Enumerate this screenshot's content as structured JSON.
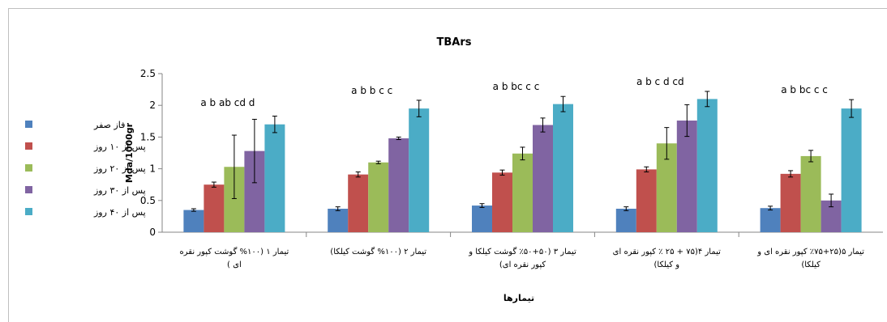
{
  "chart_data": {
    "type": "bar",
    "title": "TBArs",
    "ylabel": "Mda/1000gr",
    "xlabel": "تیمارها",
    "ylim": [
      0,
      2.5
    ],
    "yticks": [
      "0",
      "0.5",
      "1",
      "1.5",
      "2",
      "2.5"
    ],
    "grid": false,
    "legend_position": "left",
    "categories": [
      {
        "lines": [
          "تیمار ۱ (۱۰۰% گوشت کپور نقره",
          "ای )"
        ]
      },
      {
        "lines": [
          "تیمار ۲ (۱۰۰% گوشت کیلکا)"
        ]
      },
      {
        "lines": [
          "تیمار ۳ (۵۰+۵۰٪ گوشت کیلکا و",
          "کپور نقره ای)"
        ]
      },
      {
        "lines": [
          "تیمار ۴(۷۵ + ۲۵ ٪ کپور نقره ای",
          "و کیلکا)"
        ]
      },
      {
        "lines": [
          "تیمار ۵(۲۵+۷۵٪ کپور نقره ای و",
          "کیلکا)"
        ]
      }
    ],
    "significance_letters": [
      "a b ab cd d",
      "a b b c c",
      "a b bc c c",
      "a b c d cd",
      "a b bc c c"
    ],
    "series": [
      {
        "name": "فاز صفر",
        "color": "#4F81BD",
        "values": [
          0.35,
          0.37,
          0.42,
          0.37,
          0.38
        ],
        "errors": [
          0.02,
          0.03,
          0.03,
          0.03,
          0.03
        ]
      },
      {
        "name": "پس از ۱۰ روز",
        "color": "#C0504D",
        "values": [
          0.75,
          0.91,
          0.94,
          0.99,
          0.92
        ],
        "errors": [
          0.04,
          0.04,
          0.04,
          0.04,
          0.05
        ]
      },
      {
        "name": "پس از ۲۰ روز",
        "color": "#9BBB59",
        "values": [
          1.03,
          1.1,
          1.24,
          1.4,
          1.2
        ],
        "errors": [
          0.5,
          0.02,
          0.1,
          0.25,
          0.09
        ]
      },
      {
        "name": "پس از ۳۰ روز",
        "color": "#8064A2",
        "values": [
          1.28,
          1.48,
          1.69,
          1.76,
          0.5
        ],
        "errors": [
          0.5,
          0.02,
          0.11,
          0.25,
          0.1
        ]
      },
      {
        "name": "پس از ۴۰ روز",
        "color": "#4BACC6",
        "values": [
          1.7,
          1.95,
          2.02,
          2.1,
          1.95
        ],
        "errors": [
          0.13,
          0.13,
          0.12,
          0.12,
          0.14
        ]
      }
    ]
  }
}
